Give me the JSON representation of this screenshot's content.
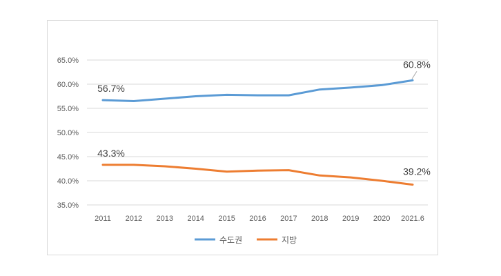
{
  "chart_data": {
    "type": "line",
    "categories": [
      "2011",
      "2012",
      "2013",
      "2014",
      "2015",
      "2016",
      "2017",
      "2018",
      "2019",
      "2020",
      "2021.6"
    ],
    "series": [
      {
        "name": "수도권",
        "color": "#5b9bd5",
        "values": [
          56.7,
          56.5,
          57.0,
          57.5,
          57.8,
          57.7,
          57.7,
          58.9,
          59.3,
          59.8,
          60.8
        ],
        "labels": {
          "0": "56.7%",
          "10": "60.8%"
        }
      },
      {
        "name": "지방",
        "color": "#ed7d31",
        "values": [
          43.3,
          43.3,
          43.0,
          42.5,
          41.9,
          42.1,
          42.2,
          41.1,
          40.7,
          40.0,
          39.2
        ],
        "labels": {
          "0": "43.3%",
          "10": "39.2%"
        }
      }
    ],
    "yticks": [
      "35.0%",
      "40.0%",
      "45.0%",
      "50.0%",
      "55.0%",
      "60.0%",
      "65.0%"
    ],
    "ylim": [
      35,
      65
    ],
    "grid": true,
    "legend": "bottom",
    "title": "",
    "xlabel": "",
    "ylabel": ""
  }
}
